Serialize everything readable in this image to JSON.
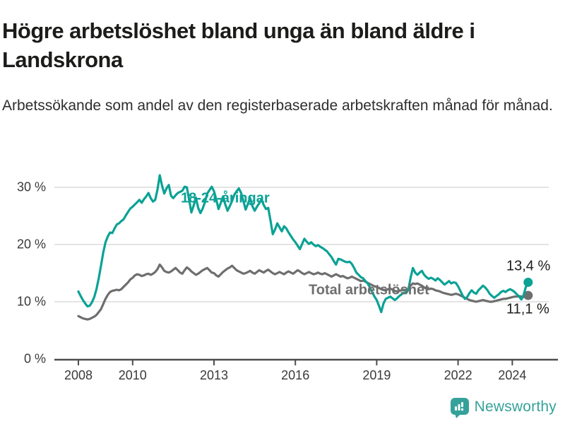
{
  "header": {
    "title": "Högre arbetslöshet bland unga än bland äldre i Landskrona",
    "subtitle": "Arbetssökande som andel av den registerbaserade arbetskraften månad för månad."
  },
  "footer": {
    "brand": "Newsworthy",
    "logo_icon": "bar-chart-speech-bubble-icon"
  },
  "colors": {
    "youth_line": "#0aa295",
    "total_line": "#6e6e6e",
    "gridline": "#dcdcdc",
    "axis": "#4d4d4d",
    "text_dark": "#1c1c1a",
    "tick_text": "#3a3a3a",
    "brand_teal": "#35a29a"
  },
  "chart_data": {
    "type": "line",
    "title": "Högre arbetslöshet bland unga än bland äldre i Landskrona",
    "subtitle": "Arbetssökande som andel av den registerbaserade arbetskraften månad för månad.",
    "x_monthly_start": "2008-01",
    "x_monthly_end": "2024-08",
    "grid": "horizontal",
    "legend_position": "inline-labels",
    "ylim": [
      0,
      33
    ],
    "y_ticks": [
      {
        "value": 0,
        "label": "0 %"
      },
      {
        "value": 10,
        "label": "10 %"
      },
      {
        "value": 20,
        "label": "20 %"
      },
      {
        "value": 30,
        "label": "30 %"
      }
    ],
    "x_ticks": [
      {
        "year": 2008,
        "label": "2008"
      },
      {
        "year": 2010,
        "label": "2010"
      },
      {
        "year": 2013,
        "label": "2013"
      },
      {
        "year": 2016,
        "label": "2016"
      },
      {
        "year": 2019,
        "label": "2019"
      },
      {
        "year": 2022,
        "label": "2022"
      },
      {
        "year": 2024,
        "label": "2024"
      }
    ],
    "series": [
      {
        "name": "18-24-åringar",
        "color": "#0aa295",
        "end_label": "13,4 %",
        "last_value": 13.4,
        "values": [
          11.8,
          11.0,
          10.3,
          9.7,
          9.2,
          9.3,
          9.9,
          10.8,
          12.2,
          14.1,
          16.3,
          18.6,
          20.4,
          21.4,
          22.1,
          22.0,
          22.8,
          23.5,
          23.7,
          24.1,
          24.4,
          25.1,
          25.7,
          26.3,
          26.6,
          27.0,
          27.4,
          27.8,
          27.3,
          27.9,
          28.4,
          29.0,
          28.1,
          27.5,
          27.8,
          29.6,
          32.1,
          30.3,
          28.9,
          29.8,
          30.4,
          28.5,
          28.1,
          28.6,
          29.0,
          29.2,
          29.4,
          30.1,
          30.0,
          27.8,
          25.6,
          26.8,
          28.2,
          26.4,
          25.5,
          26.3,
          27.4,
          28.9,
          29.5,
          30.1,
          29.3,
          27.9,
          26.2,
          27.3,
          28.4,
          27.0,
          25.9,
          26.7,
          27.6,
          28.7,
          29.3,
          29.8,
          29.0,
          27.6,
          26.1,
          27.1,
          28.1,
          26.7,
          25.9,
          26.6,
          27.2,
          27.9,
          26.9,
          26.2,
          26.4,
          24.2,
          21.8,
          22.6,
          23.7,
          23.0,
          22.3,
          23.2,
          22.8,
          22.1,
          21.5,
          20.9,
          20.4,
          19.8,
          19.2,
          20.1,
          21.0,
          20.5,
          20.1,
          20.4,
          20.0,
          19.7,
          19.9,
          19.6,
          19.4,
          19.1,
          18.8,
          18.3,
          17.8,
          17.1,
          16.5,
          17.5,
          17.4,
          17.2,
          17.0,
          16.9,
          17.0,
          16.6,
          15.9,
          15.1,
          14.7,
          14.3,
          14.1,
          13.6,
          13.2,
          12.5,
          11.7,
          10.9,
          10.3,
          9.3,
          8.2,
          9.7,
          10.5,
          10.7,
          10.9,
          10.6,
          10.3,
          10.6,
          11.0,
          11.3,
          11.6,
          11.5,
          12.1,
          14.2,
          15.9,
          15.1,
          14.7,
          15.1,
          15.4,
          14.7,
          14.3,
          14.0,
          14.2,
          14.0,
          13.7,
          14.1,
          13.8,
          13.4,
          13.0,
          13.3,
          13.6,
          13.2,
          13.4,
          13.3,
          12.7,
          11.9,
          11.1,
          10.5,
          10.8,
          11.5,
          12.0,
          11.6,
          11.4,
          12.0,
          12.4,
          12.8,
          12.5,
          12.0,
          11.4,
          11.0,
          10.7,
          11.0,
          11.3,
          11.7,
          11.9,
          11.7,
          12.0,
          12.2,
          12.0,
          11.7,
          11.3,
          10.9,
          10.4,
          11.2,
          12.6,
          13.4
        ]
      },
      {
        "name": "Total arbetslöshet",
        "color": "#6e6e6e",
        "end_label": "11,1 %",
        "last_value": 11.1,
        "values": [
          7.5,
          7.3,
          7.1,
          7.0,
          6.9,
          7.0,
          7.2,
          7.4,
          7.7,
          8.2,
          8.7,
          9.6,
          10.5,
          11.2,
          11.7,
          11.9,
          12.0,
          12.1,
          12.0,
          12.2,
          12.6,
          13.0,
          13.4,
          13.9,
          14.2,
          14.6,
          14.8,
          14.7,
          14.5,
          14.6,
          14.8,
          14.9,
          14.7,
          14.9,
          15.2,
          15.7,
          16.5,
          16.0,
          15.4,
          15.2,
          15.1,
          15.3,
          15.6,
          15.9,
          15.5,
          15.1,
          14.9,
          15.5,
          16.0,
          15.7,
          15.3,
          15.0,
          14.7,
          14.9,
          15.2,
          15.5,
          15.7,
          15.9,
          15.5,
          15.1,
          15.0,
          14.6,
          14.4,
          14.8,
          15.2,
          15.5,
          15.8,
          16.0,
          16.3,
          15.9,
          15.5,
          15.3,
          15.1,
          14.9,
          15.0,
          15.2,
          15.4,
          15.1,
          14.9,
          15.2,
          15.5,
          15.3,
          15.1,
          15.4,
          15.6,
          15.3,
          15.0,
          14.8,
          15.0,
          15.2,
          15.0,
          14.8,
          15.1,
          15.3,
          15.1,
          14.9,
          15.2,
          15.5,
          15.3,
          15.0,
          14.8,
          15.0,
          15.2,
          15.0,
          14.8,
          14.9,
          15.1,
          14.9,
          14.8,
          15.0,
          14.8,
          14.6,
          14.4,
          14.6,
          14.8,
          14.6,
          14.4,
          14.5,
          14.3,
          14.1,
          14.2,
          14.4,
          14.2,
          14.0,
          13.8,
          13.6,
          13.7,
          13.5,
          13.3,
          13.1,
          12.9,
          12.7,
          12.6,
          12.4,
          12.2,
          12.1,
          12.0,
          12.2,
          12.3,
          12.1,
          11.9,
          11.8,
          11.9,
          12.0,
          12.1,
          12.0,
          12.3,
          12.8,
          13.2,
          13.1,
          13.2,
          13.0,
          12.8,
          12.5,
          12.3,
          12.2,
          12.3,
          12.2,
          12.0,
          11.9,
          11.8,
          11.6,
          11.5,
          11.4,
          11.3,
          11.2,
          11.3,
          11.4,
          11.3,
          11.1,
          10.9,
          10.7,
          10.5,
          10.3,
          10.2,
          10.1,
          10.0,
          10.1,
          10.2,
          10.3,
          10.2,
          10.1,
          10.0,
          10.0,
          10.1,
          10.2,
          10.3,
          10.4,
          10.5,
          10.5,
          10.6,
          10.7,
          10.8,
          10.9,
          10.9,
          11.0,
          10.9,
          10.8,
          11.0,
          11.1
        ]
      }
    ]
  }
}
